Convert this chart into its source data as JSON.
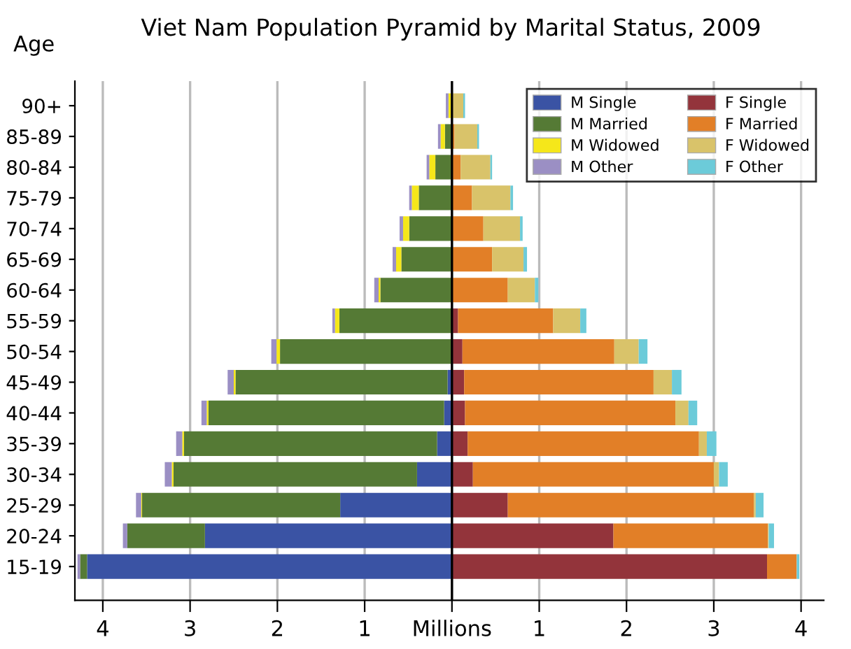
{
  "chart_data": {
    "type": "bar",
    "orientation": "horizontal",
    "stacked": true,
    "title": "Viet Nam Population Pyramid by Marital Status, 2009",
    "ylabel": "Age",
    "categories": [
      "90+",
      "85-89",
      "80-84",
      "75-79",
      "70-74",
      "65-69",
      "60-64",
      "55-59",
      "50-54",
      "45-49",
      "40-44",
      "35-39",
      "30-34",
      "25-29",
      "20-24",
      "15-19"
    ],
    "series": [
      {
        "name": "M Single",
        "color": "#3a53a4",
        "values": [
          0,
          null,
          0,
          0,
          0,
          0,
          0,
          0,
          0,
          -0.05,
          -0.09,
          -0.17,
          -0.4,
          -1.28,
          -2.83,
          -4.18
        ]
      },
      {
        "name": "M Married",
        "color": "#557a35",
        "values": [
          -0.01,
          -0.08,
          -0.19,
          -0.38,
          -0.49,
          -0.58,
          -0.82,
          -1.29,
          -1.97,
          -2.43,
          -2.7,
          -2.9,
          -2.79,
          -2.27,
          -0.89,
          -0.08
        ]
      },
      {
        "name": "M Widowed",
        "color": "#f5e71a",
        "values": [
          -0.03,
          -0.05,
          -0.07,
          -0.08,
          -0.07,
          -0.06,
          -0.02,
          -0.05,
          -0.04,
          -0.02,
          -0.02,
          -0.02,
          -0.02,
          -0.01,
          0,
          0
        ]
      },
      {
        "name": "M Other",
        "color": "#9b8fc4",
        "values": [
          -0.03,
          -0.03,
          -0.03,
          -0.03,
          -0.04,
          -0.04,
          -0.05,
          -0.03,
          -0.06,
          -0.07,
          -0.06,
          -0.07,
          -0.08,
          -0.06,
          -0.05,
          -0.03
        ]
      },
      {
        "name": "F Single",
        "color": "#93343b",
        "values": [
          0,
          0,
          0,
          0,
          0,
          null,
          null,
          0.07,
          0.12,
          0.14,
          0.15,
          0.18,
          0.24,
          0.64,
          1.85,
          3.61
        ]
      },
      {
        "name": "F Married",
        "color": "#e27f27",
        "values": [
          0.01,
          0.03,
          0.1,
          0.23,
          0.36,
          0.46,
          0.64,
          1.09,
          1.74,
          2.17,
          2.41,
          2.65,
          2.76,
          2.82,
          1.77,
          0.34
        ]
      },
      {
        "name": "F Widowed",
        "color": "#d9c36a",
        "values": [
          0.12,
          0.26,
          0.34,
          0.44,
          0.42,
          0.36,
          0.31,
          0.31,
          0.28,
          0.21,
          0.15,
          0.09,
          0.06,
          0.02,
          0.01,
          0
        ]
      },
      {
        "name": "F Other",
        "color": "#6ccbd9",
        "values": [
          0.02,
          0.02,
          0.02,
          0.03,
          0.03,
          0.04,
          0.04,
          0.07,
          0.1,
          0.11,
          0.1,
          0.11,
          0.1,
          0.09,
          0.06,
          0.03
        ]
      }
    ],
    "xlim": [
      -4.32,
      4.26
    ],
    "xticks": [
      {
        "value": -4,
        "label": "4"
      },
      {
        "value": -3,
        "label": "3"
      },
      {
        "value": -2,
        "label": "2"
      },
      {
        "value": -1,
        "label": "1"
      },
      {
        "value": 0,
        "label": "Millions"
      },
      1,
      2,
      3,
      4
    ],
    "ref_lines": [
      {
        "axis": "x",
        "value": 0,
        "color": "#000000"
      }
    ],
    "grid": "x",
    "legend": "top right"
  }
}
